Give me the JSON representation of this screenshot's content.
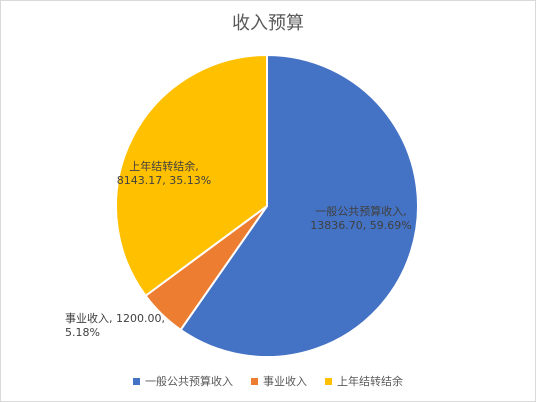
{
  "chart_data": {
    "type": "pie",
    "title": "收入预算",
    "slices": [
      {
        "name": "一般公共预算收入",
        "value": 13836.7,
        "percent": "59.69%",
        "color": "#4472c4",
        "label_lines": [
          "一般公共预算收入,",
          "13836.70, 59.69%"
        ]
      },
      {
        "name": "事业收入",
        "value": 1200.0,
        "percent": "5.18%",
        "color": "#ed7d31",
        "label_lines": [
          "事业收入, 1200.00,",
          "5.18%"
        ]
      },
      {
        "name": "上年结转结余",
        "value": 8143.17,
        "percent": "35.13%",
        "color": "#ffc000",
        "label_lines": [
          "上年结转结余,",
          "8143.17, 35.13%"
        ]
      }
    ],
    "legend_position": "bottom"
  }
}
